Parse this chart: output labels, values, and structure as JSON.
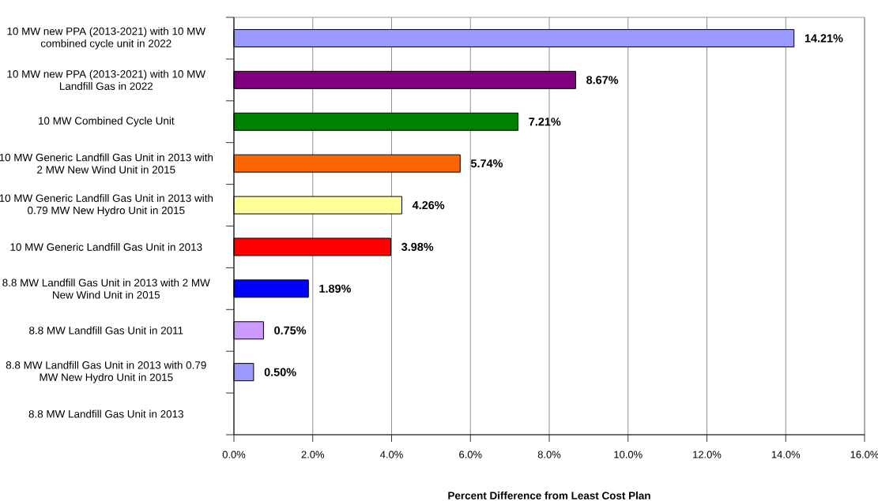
{
  "chart_data": {
    "type": "bar",
    "orientation": "horizontal",
    "xlabel": "Percent Difference from Least Cost Plan",
    "categories": [
      "10 MW new PPA (2013-2021) with 10 MW combined cycle unit in 2022",
      "10 MW new PPA (2013-2021) with 10 MW Landfill Gas in 2022",
      "10 MW Combined Cycle Unit",
      "10 MW Generic Landfill Gas Unit in 2013 with 2 MW New Wind Unit in 2015",
      "10 MW Generic Landfill Gas Unit in 2013 with 0.79 MW New Hydro Unit in 2015",
      "10 MW Generic Landfill Gas Unit in 2013",
      "8.8 MW Landfill Gas Unit in 2013 with 2 MW New Wind Unit in 2015",
      "8.8 MW Landfill Gas Unit in 2011",
      "8.8 MW Landfill Gas Unit in 2013 with 0.79 MW New Hydro Unit in 2015",
      "8.8 MW Landfill Gas Unit in 2013"
    ],
    "values": [
      14.21,
      8.67,
      7.21,
      5.74,
      4.26,
      3.98,
      1.89,
      0.75,
      0.5,
      0
    ],
    "colors": [
      "#9999ff",
      "#800080",
      "#008000",
      "#ff6600",
      "#ffff99",
      "#ff0000",
      "#0000ff",
      "#cc99ff",
      "#9999ff",
      null
    ],
    "value_labels": [
      "14.21%",
      "8.67%",
      "7.21%",
      "5.74%",
      "4.26%",
      "3.98%",
      "1.89%",
      "0.75%",
      "0.50%",
      null
    ],
    "xlim": [
      0,
      16
    ],
    "xticks": [
      {
        "value": 0,
        "label": "0.0%"
      },
      {
        "value": 2,
        "label": "2.0%"
      },
      {
        "value": 4,
        "label": "4.0%"
      },
      {
        "value": 6,
        "label": "6.0%"
      },
      {
        "value": 8,
        "label": "8.0%"
      },
      {
        "value": 10,
        "label": "10.0%"
      },
      {
        "value": 12,
        "label": "12.0%"
      },
      {
        "value": 14,
        "label": "14.0%"
      },
      {
        "value": 16,
        "label": "16.0%"
      }
    ],
    "grid": "x"
  }
}
